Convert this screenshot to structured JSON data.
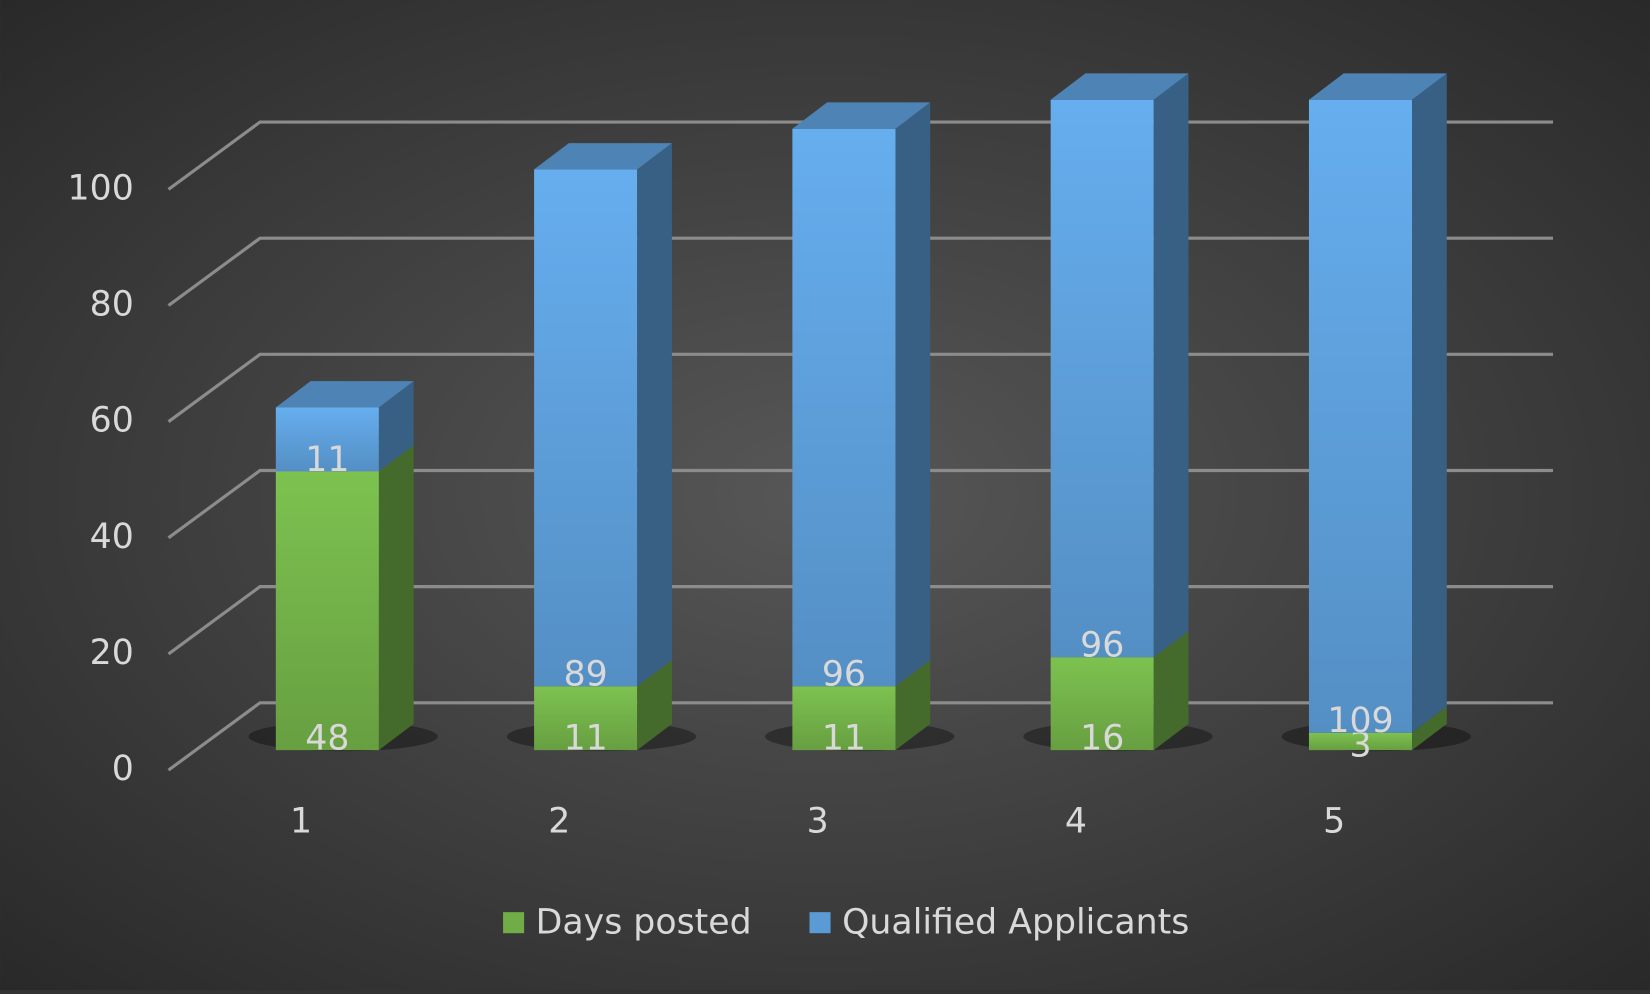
{
  "chart_data": {
    "type": "bar3d_stacked",
    "categories": [
      "1",
      "2",
      "3",
      "4",
      "5"
    ],
    "series": [
      {
        "name": "Days posted",
        "color": "#70ad47",
        "values": [
          48,
          11,
          11,
          16,
          3
        ]
      },
      {
        "name": "Qualified Applicants",
        "color": "#5b9bd5",
        "values": [
          11,
          89,
          96,
          96,
          109
        ]
      }
    ],
    "ylim": [
      0,
      100
    ],
    "yticks": [
      0,
      20,
      40,
      60,
      80,
      100
    ],
    "grid": true,
    "legend": "bottom"
  }
}
